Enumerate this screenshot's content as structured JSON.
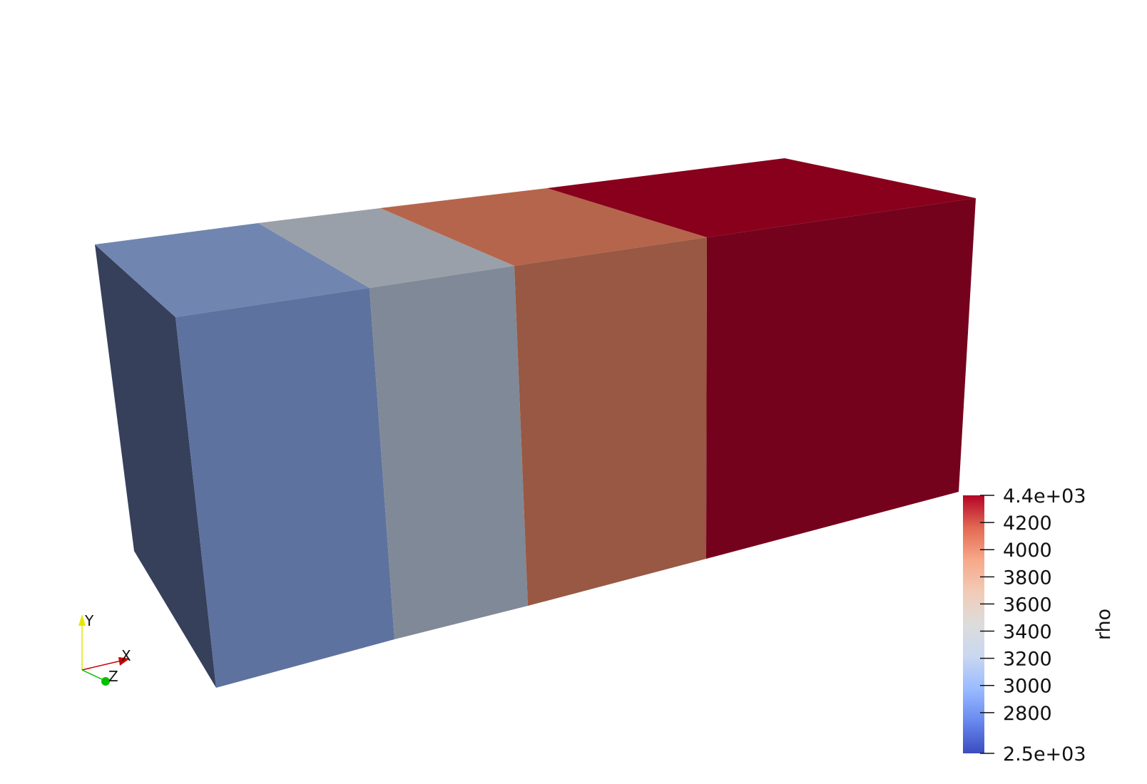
{
  "view": {
    "background": "#ffffff"
  },
  "box": {
    "faces": {
      "end": "#36405a",
      "top": [
        "#7086b1",
        "#9aa0a9",
        "#b5654b",
        "#88001c"
      ],
      "front": [
        "#5e729f",
        "#808997",
        "#985843",
        "#75021c"
      ]
    }
  },
  "colorbar": {
    "title": "rho",
    "range": [
      2500,
      4400
    ],
    "colors": [
      "#3b4cc0",
      "#6889ee",
      "#9abbff",
      "#c9d7f0",
      "#dddcdc",
      "#f2cbb7",
      "#f7a889",
      "#e26952",
      "#b40426"
    ],
    "ticks": [
      {
        "value": 4400,
        "label": "4.4e+03"
      },
      {
        "value": 4200,
        "label": "4200"
      },
      {
        "value": 4000,
        "label": "4000"
      },
      {
        "value": 3800,
        "label": "3800"
      },
      {
        "value": 3600,
        "label": "3600"
      },
      {
        "value": 3400,
        "label": "3400"
      },
      {
        "value": 3200,
        "label": "3200"
      },
      {
        "value": 3000,
        "label": "3000"
      },
      {
        "value": 2800,
        "label": "2800"
      },
      {
        "value": 2500,
        "label": "2.5e+03"
      }
    ]
  },
  "orientation": {
    "y_label": "Y",
    "x_label": "X",
    "z_label": "Z",
    "colors": {
      "y": "#e6e600",
      "x": "#cc0000",
      "z": "#00c000"
    }
  }
}
